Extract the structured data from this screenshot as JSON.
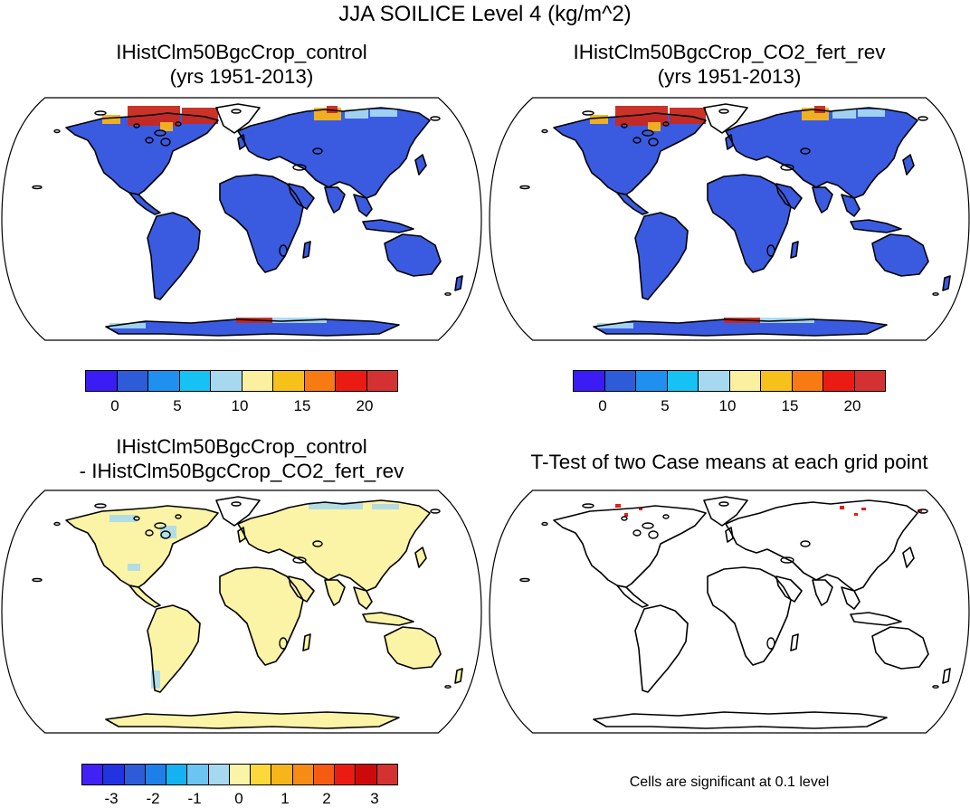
{
  "title": "JJA SOILICE Level 4 (kg/m^2)",
  "panels": {
    "control": {
      "title_line1": "IHistClm50BgcCrop_control",
      "title_line2": "(yrs 1951-2013)"
    },
    "co2": {
      "title_line1": "IHistClm50BgcCrop_CO2_fert_rev",
      "title_line2": "(yrs 1951-2013)"
    },
    "diff": {
      "title_line1": "IHistClm50BgcCrop_control",
      "title_line2": "- IHistClm50BgcCrop_CO2_fert_rev"
    },
    "ttest": {
      "title_line1": "T-Test of two Case means at each grid point",
      "footnote": "Cells are significant at 0.1 level"
    }
  },
  "colorbar_abs": {
    "colors": [
      "#3b1cf5",
      "#2e5bd8",
      "#1f8ff0",
      "#15c2f3",
      "#a6d8f0",
      "#fbf0a0",
      "#f7c11b",
      "#f77b12",
      "#ea1b12",
      "#d43232"
    ],
    "labels": [
      "0",
      "5",
      "10",
      "15",
      "20"
    ]
  },
  "colorbar_diff": {
    "colors": [
      "#4221f7",
      "#2233e2",
      "#2e5bd8",
      "#1f7fe8",
      "#15b2f2",
      "#6cc4f0",
      "#a6d8f0",
      "#fbf3a6",
      "#fcd83a",
      "#f7b51a",
      "#f78c14",
      "#f75b12",
      "#ea1b12",
      "#cc0a0a",
      "#d43232"
    ],
    "labels": [
      "-3",
      "-2",
      "-1",
      "0",
      "1",
      "2",
      "3"
    ]
  },
  "fill_colors": {
    "land_abs": "#3a5be0",
    "ice_high": "#c8281c",
    "ice_mid": "#f7b51a",
    "land_diff": "#fbf3a6",
    "diff_cool": "#a6d8f0",
    "significant": "#ea1b12"
  }
}
